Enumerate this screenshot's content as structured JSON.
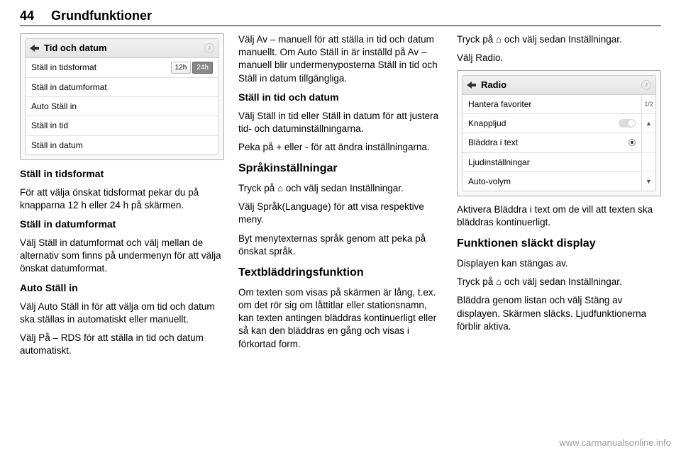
{
  "header": {
    "page_number": "44",
    "title": "Grundfunktioner"
  },
  "col1": {
    "panel": {
      "title": "Tid och datum",
      "rows": [
        {
          "label": "Ställ in tidsformat",
          "type": "toggle",
          "options": [
            "12h",
            "24h"
          ],
          "active": "24h"
        },
        {
          "label": "Ställ in datumformat",
          "type": "plain"
        },
        {
          "label": "Auto Ställ in",
          "type": "plain"
        },
        {
          "label": "Ställ in tid",
          "type": "plain"
        },
        {
          "label": "Ställ in datum",
          "type": "plain"
        }
      ]
    },
    "sub1_title": "Ställ in tidsformat",
    "sub1_body": "För att välja önskat tidsformat pekar du på knapparna 12 h eller 24 h på skärmen.",
    "sub2_title": "Ställ in datumformat",
    "sub2_body": "Välj Ställ in datumformat och välj mellan de alternativ som finns på undermenyn för att välja önskat datumformat.",
    "sub3_title": "Auto Ställ in",
    "sub3_body": "Välj Auto Ställ in för att välja om tid och datum ska ställas in automatiskt eller manuellt.",
    "sub3_body2": "Välj På – RDS för att ställa in tid och datum automatiskt."
  },
  "col2": {
    "p1": "Välj Av – manuell för att ställa in tid och datum manuellt. Om Auto Ställ in är inställd på Av – manuell blir undermenyposterna Ställ in tid och Ställ in datum tillgängliga.",
    "sub1_title": "Ställ in tid och datum",
    "sub1_body": "Välj Ställ in tid eller Ställ in datum för att justera tid- och datuminställning­arna.",
    "sub1_body2": "Peka på + eller - för att ändra inställ­ningarna.",
    "section1_title": "Språkinställningar",
    "section1_p1": "Tryck på ⌂ och välj sedan Inställningar.",
    "section1_p2": "Välj Språk(Language) för att visa respektive meny.",
    "section1_p3": "Byt menytexternas språk genom att peka på önskat språk.",
    "section2_title": "Textbläddringsfunktion",
    "section2_p1": "Om texten som visas på skärmen är lång, t.ex. om det rör sig om låttitlar eller stationsnamn, kan texten antingen bläddras kontinuerligt eller så kan den bläddras en gång och visas i förkortad form."
  },
  "col3": {
    "p1": "Tryck på ⌂ och välj sedan Inställningar.",
    "p2": "Välj Radio.",
    "panel": {
      "title": "Radio",
      "page_indicator": "1/2",
      "rows": [
        {
          "label": "Hantera favoriter",
          "type": "plain"
        },
        {
          "label": "Knappljud",
          "type": "switch"
        },
        {
          "label": "Bläddra i text",
          "type": "radio"
        },
        {
          "label": "Ljudinställningar",
          "type": "plain"
        },
        {
          "label": "Auto-volym",
          "type": "plain"
        }
      ],
      "scroll_up": "▲",
      "scroll_down": "▼"
    },
    "p3": "Aktivera Bläddra i text om de vill att texten ska bläddras kontinuerligt.",
    "section_title": "Funktionen släckt display",
    "p4": "Displayen kan stängas av.",
    "p5": "Tryck på ⌂ och välj sedan Inställningar.",
    "p6": "Bläddra genom listan och välj Stäng av displayen. Skärmen släcks. Ljud­funktionerna förblir aktiva."
  },
  "watermark": "www.carmanualsonline.info"
}
